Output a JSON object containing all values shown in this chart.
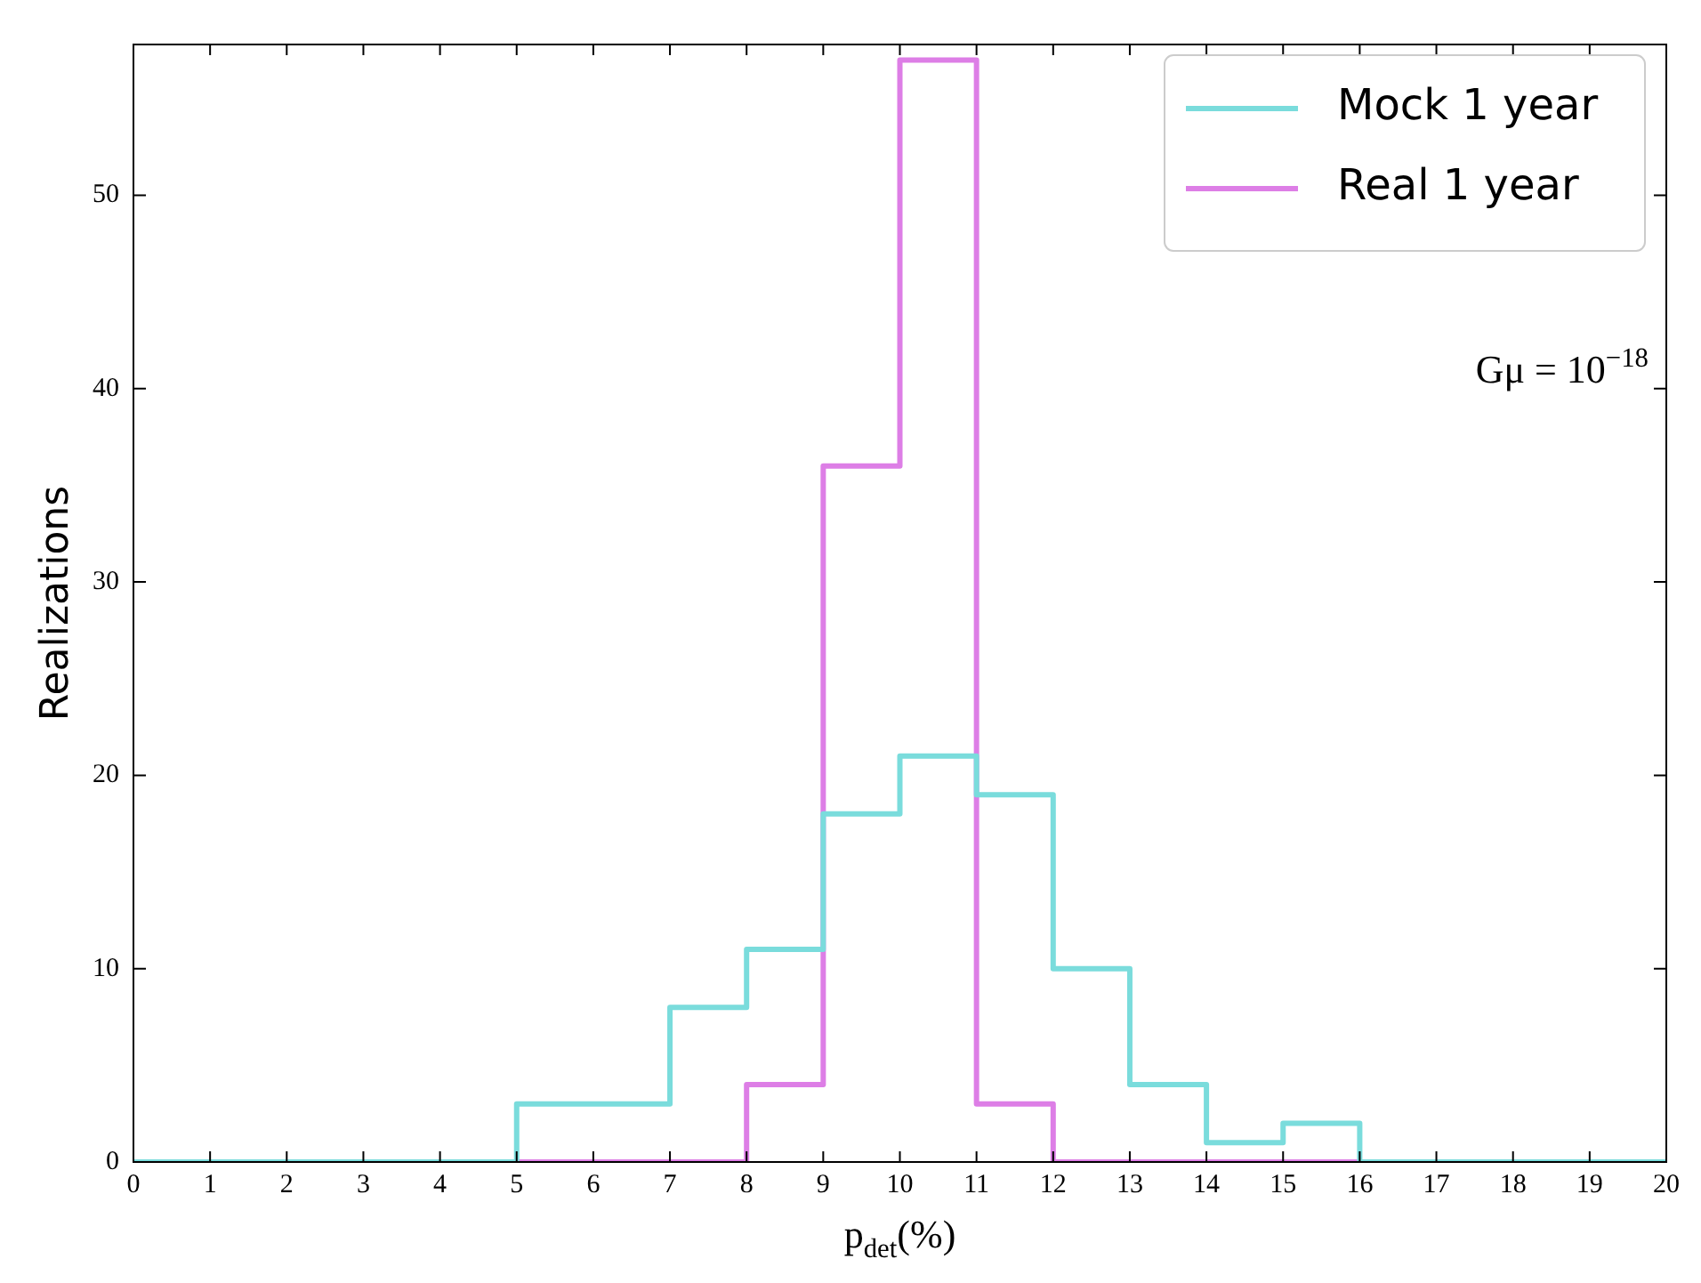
{
  "chart_data": {
    "type": "histogram",
    "xlabel": "p$_{det}$(%)",
    "ylabel": "Realizations",
    "annotations": [
      "Gμ = 10$^{−18}$"
    ],
    "bins": [
      0,
      1,
      2,
      3,
      4,
      5,
      6,
      7,
      8,
      9,
      10,
      11,
      12,
      13,
      14,
      15,
      16,
      17,
      18,
      19,
      20
    ],
    "series": [
      {
        "name": "Mock 1 year",
        "color": "#7adcdc",
        "values": [
          0,
          0,
          0,
          0,
          0,
          3,
          3,
          8,
          11,
          18,
          21,
          19,
          10,
          4,
          1,
          2,
          0,
          0,
          0,
          0
        ]
      },
      {
        "name": "Real 1 year",
        "color": "#dd7ee6",
        "values": [
          0,
          0,
          0,
          0,
          0,
          0,
          0,
          0,
          4,
          36,
          57,
          3,
          0,
          0,
          0,
          0,
          0,
          0,
          0,
          0
        ]
      }
    ],
    "xlim": [
      0,
      20
    ],
    "xticks": [
      0,
      1,
      2,
      3,
      4,
      5,
      6,
      7,
      8,
      9,
      10,
      11,
      12,
      13,
      14,
      15,
      16,
      17,
      18,
      19,
      20
    ],
    "ylim": [
      0,
      57.8
    ],
    "yticks": [
      0,
      10,
      20,
      30,
      40,
      50
    ],
    "legend": "top right",
    "grid": false
  }
}
